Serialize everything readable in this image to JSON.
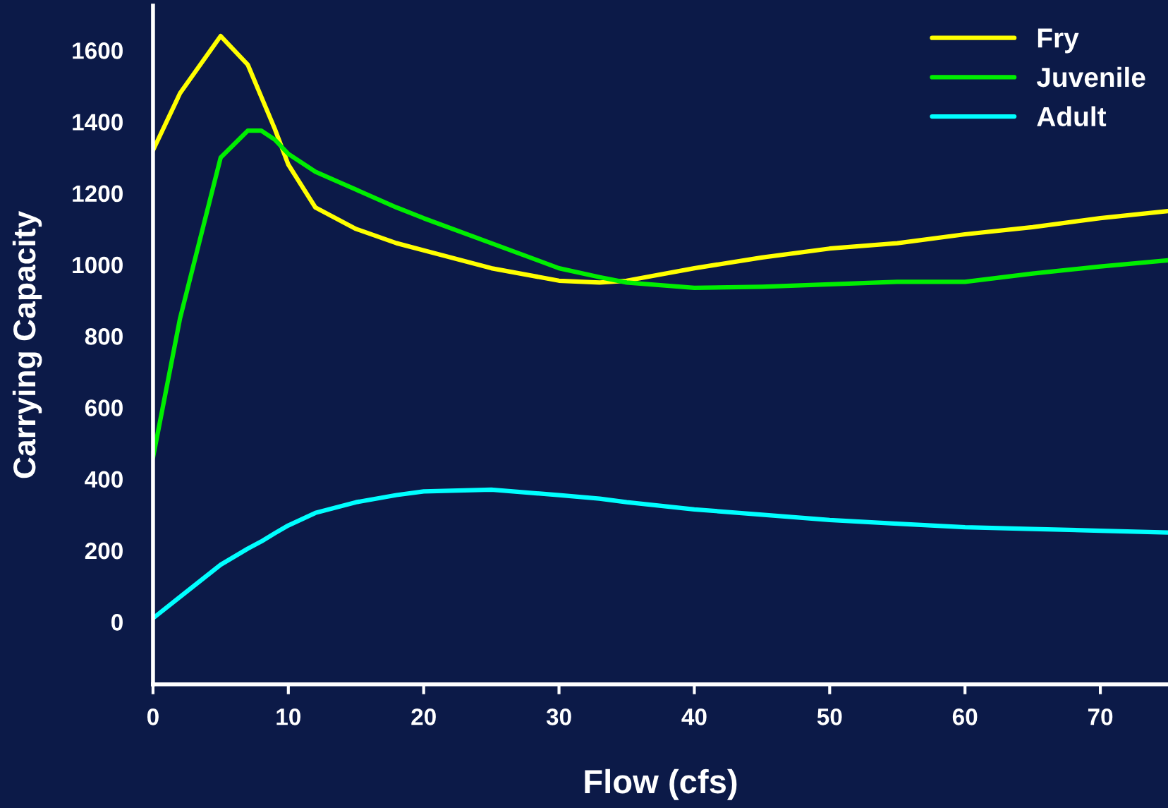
{
  "chart_data": {
    "type": "line",
    "xlabel": "Flow (cfs)",
    "ylabel": "Carrying Capacity",
    "xlim": [
      0,
      75
    ],
    "ylim": [
      -175,
      1725
    ],
    "xticks": [
      0,
      10,
      20,
      30,
      40,
      50,
      60,
      70
    ],
    "yticks": [
      0,
      200,
      400,
      600,
      800,
      1000,
      1200,
      1400,
      1600
    ],
    "grid": false,
    "legend": "top right",
    "marker": "none",
    "line_style": "solid",
    "x": [
      0,
      2,
      5,
      7,
      8,
      9,
      10,
      12,
      15,
      18,
      20,
      25,
      30,
      33,
      35,
      40,
      45,
      50,
      55,
      60,
      65,
      70,
      75
    ],
    "series": [
      {
        "name": "Fry",
        "color": "#ffff00",
        "values": [
          1320,
          1480,
          1640,
          1560,
          1470,
          1380,
          1280,
          1160,
          1100,
          1060,
          1040,
          990,
          955,
          950,
          955,
          990,
          1020,
          1045,
          1060,
          1085,
          1105,
          1130,
          1150
        ]
      },
      {
        "name": "Juvenile",
        "color": "#00ee00",
        "values": [
          460,
          850,
          1300,
          1375,
          1375,
          1350,
          1310,
          1260,
          1210,
          1160,
          1130,
          1060,
          990,
          965,
          950,
          935,
          938,
          945,
          952,
          952,
          975,
          995,
          1012
        ]
      },
      {
        "name": "Adult",
        "color": "#00ffff",
        "values": [
          10,
          70,
          160,
          205,
          225,
          248,
          270,
          305,
          335,
          355,
          365,
          370,
          355,
          345,
          335,
          315,
          300,
          285,
          275,
          265,
          260,
          255,
          250
        ]
      }
    ]
  }
}
